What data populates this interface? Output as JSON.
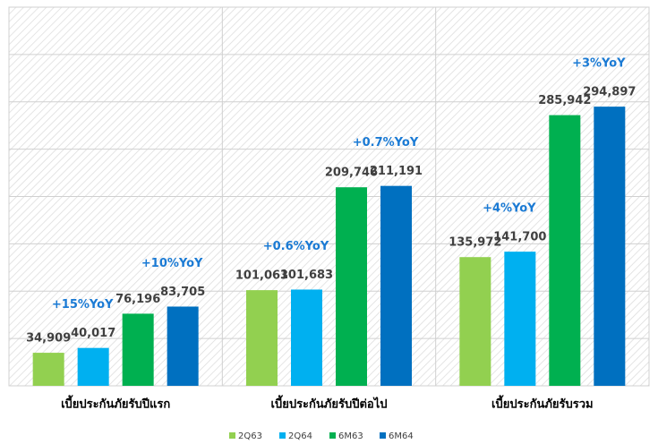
{
  "chart_data": {
    "type": "bar",
    "categories": [
      "เบี้ยประกันภัยรับปีแรก",
      "เบี้ยประกันภัยรับปีต่อไป",
      "เบี้ยประกันภัยรับรวม"
    ],
    "series": [
      {
        "name": "2Q63",
        "color": "#92d050",
        "values": [
          34909,
          101063,
          135972
        ],
        "value_labels": [
          "34,909",
          "101,063",
          "135,972"
        ]
      },
      {
        "name": "2Q64",
        "color": "#00b0f0",
        "values": [
          40017,
          101683,
          141700
        ],
        "value_labels": [
          "40,017",
          "101,683",
          "141,700"
        ]
      },
      {
        "name": "6M63",
        "color": "#00b050",
        "values": [
          76196,
          209746,
          285942
        ],
        "value_labels": [
          "76,196",
          "209,746",
          "285,942"
        ]
      },
      {
        "name": "6M64",
        "color": "#0070c0",
        "values": [
          83705,
          211191,
          294897
        ],
        "value_labels": [
          "83,705",
          "211,191",
          "294,897"
        ]
      }
    ],
    "annotations": [
      {
        "text": "+15%YoY",
        "category": 0,
        "series": 1
      },
      {
        "text": "+10%YoY",
        "category": 0,
        "series": 3
      },
      {
        "text": "+0.6%YoY",
        "category": 1,
        "series": 1
      },
      {
        "text": "+0.7%YoY",
        "category": 1,
        "series": 3
      },
      {
        "text": "+4%YoY",
        "category": 2,
        "series": 1
      },
      {
        "text": "+3%YoY",
        "category": 2,
        "series": 3
      }
    ],
    "ylim": [
      0,
      400000
    ],
    "yticks": [
      0,
      50000,
      100000,
      150000,
      200000,
      250000,
      300000,
      350000,
      400000
    ],
    "grid": true,
    "legend": "bottom"
  }
}
